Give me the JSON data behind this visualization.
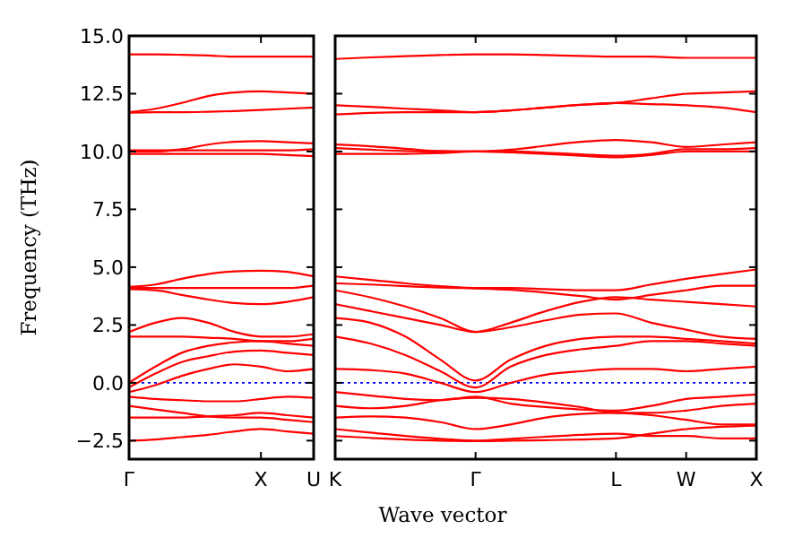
{
  "chart_data": [
    {
      "type": "line",
      "ylabel": "Frequency (THz)",
      "categories": [
        "Γ",
        null,
        null,
        null,
        null,
        "X",
        null,
        "U"
      ],
      "ylim": [
        -3.3,
        15
      ],
      "yticks": [
        {
          "value": -2.5,
          "label": "−2.5"
        },
        {
          "value": 0,
          "label": "0.0"
        },
        {
          "value": 2.5,
          "label": "2.5"
        },
        {
          "value": 5,
          "label": "5.0"
        },
        {
          "value": 7.5,
          "label": "7.5"
        },
        {
          "value": 10,
          "label": "10.0"
        },
        {
          "value": 12.5,
          "label": "12.5"
        },
        {
          "value": 15,
          "label": "15.0"
        }
      ],
      "grid": false,
      "ref_lines": [
        {
          "axis": "y",
          "value": 0,
          "color": "#0000ff",
          "line_style": "dotted"
        }
      ],
      "series": [
        {
          "color": "#ff0000",
          "values": [
            14.2,
            14.2,
            14.18,
            14.15,
            14.1,
            14.1,
            14.1,
            14.1
          ]
        },
        {
          "color": "#ff0000",
          "values": [
            11.7,
            11.85,
            12.1,
            12.4,
            12.55,
            12.6,
            12.55,
            12.5
          ]
        },
        {
          "color": "#ff0000",
          "values": [
            11.68,
            11.7,
            11.7,
            11.72,
            11.75,
            11.8,
            11.85,
            11.9
          ]
        },
        {
          "color": "#ff0000",
          "values": [
            10.0,
            10.0,
            10.1,
            10.3,
            10.42,
            10.45,
            10.4,
            10.35
          ]
        },
        {
          "color": "#ff0000",
          "values": [
            10.05,
            10.05,
            10.05,
            10.05,
            10.05,
            10.05,
            10.05,
            10.1
          ]
        },
        {
          "color": "#ff0000",
          "values": [
            9.9,
            9.9,
            9.9,
            9.9,
            9.9,
            9.9,
            9.85,
            9.8
          ]
        },
        {
          "color": "#ff0000",
          "values": [
            4.15,
            4.25,
            4.5,
            4.7,
            4.82,
            4.85,
            4.8,
            4.6
          ]
        },
        {
          "color": "#ff0000",
          "values": [
            4.1,
            4.1,
            4.1,
            4.1,
            4.1,
            4.1,
            4.1,
            4.2
          ]
        },
        {
          "color": "#ff0000",
          "values": [
            4.05,
            4.0,
            3.8,
            3.6,
            3.45,
            3.4,
            3.5,
            3.7
          ]
        },
        {
          "color": "#ff0000",
          "values": [
            2.2,
            2.6,
            2.8,
            2.6,
            2.2,
            2.0,
            2.0,
            2.1
          ]
        },
        {
          "color": "#ff0000",
          "values": [
            2.0,
            2.0,
            2.0,
            1.95,
            1.9,
            1.8,
            1.8,
            1.9
          ]
        },
        {
          "color": "#ff0000",
          "values": [
            0.0,
            0.7,
            1.3,
            1.6,
            1.75,
            1.8,
            1.7,
            1.6
          ]
        },
        {
          "color": "#ff0000",
          "values": [
            -0.2,
            0.4,
            0.9,
            1.15,
            1.35,
            1.4,
            1.3,
            1.2
          ]
        },
        {
          "color": "#ff0000",
          "values": [
            -0.4,
            -0.1,
            0.3,
            0.6,
            0.8,
            0.7,
            0.5,
            0.6
          ]
        },
        {
          "color": "#ff0000",
          "values": [
            -0.6,
            -0.7,
            -0.75,
            -0.8,
            -0.8,
            -0.7,
            -0.6,
            -0.65
          ]
        },
        {
          "color": "#ff0000",
          "values": [
            -1.0,
            -1.15,
            -1.3,
            -1.45,
            -1.5,
            -1.5,
            -1.6,
            -1.7
          ]
        },
        {
          "color": "#ff0000",
          "values": [
            -1.5,
            -1.5,
            -1.5,
            -1.45,
            -1.4,
            -1.3,
            -1.4,
            -1.5
          ]
        },
        {
          "color": "#ff0000",
          "values": [
            -2.5,
            -2.45,
            -2.35,
            -2.25,
            -2.1,
            -2.0,
            -2.1,
            -2.2
          ]
        }
      ]
    },
    {
      "type": "line",
      "xlabel": "Wave vector",
      "categories": [
        "K",
        null,
        null,
        null,
        "Γ",
        null,
        null,
        null,
        "L",
        null,
        "W",
        null,
        "X"
      ],
      "ylim": [
        -3.3,
        15
      ],
      "yticks": [
        {
          "value": -2.5,
          "label": null
        },
        {
          "value": 0,
          "label": null
        },
        {
          "value": 2.5,
          "label": null
        },
        {
          "value": 5,
          "label": null
        },
        {
          "value": 7.5,
          "label": null
        },
        {
          "value": 10,
          "label": null
        },
        {
          "value": 12.5,
          "label": null
        },
        {
          "value": 15,
          "label": null
        }
      ],
      "tick_labels": "x",
      "grid": false,
      "ref_lines": [
        {
          "axis": "y",
          "value": 0,
          "color": "#0000ff",
          "line_style": "dotted"
        }
      ],
      "series": [
        {
          "color": "#ff0000",
          "values": [
            14.0,
            14.07,
            14.12,
            14.17,
            14.2,
            14.2,
            14.17,
            14.13,
            14.1,
            14.1,
            14.05,
            14.05,
            14.05
          ]
        },
        {
          "color": "#ff0000",
          "values": [
            12.0,
            11.93,
            11.85,
            11.78,
            11.7,
            11.78,
            11.9,
            12.02,
            12.1,
            12.3,
            12.5,
            12.55,
            12.6
          ]
        },
        {
          "color": "#ff0000",
          "values": [
            11.6,
            11.67,
            11.7,
            11.7,
            11.7,
            11.78,
            11.9,
            12.02,
            12.1,
            12.05,
            12.0,
            11.9,
            11.7
          ]
        },
        {
          "color": "#ff0000",
          "values": [
            10.3,
            10.23,
            10.12,
            10.02,
            10.0,
            10.08,
            10.25,
            10.42,
            10.5,
            10.4,
            10.2,
            10.3,
            10.4
          ]
        },
        {
          "color": "#ff0000",
          "values": [
            10.15,
            10.08,
            10.02,
            10.0,
            10.0,
            10.0,
            9.95,
            9.88,
            9.82,
            9.9,
            10.1,
            10.1,
            10.15
          ]
        },
        {
          "color": "#ff0000",
          "values": [
            9.9,
            9.9,
            9.9,
            9.93,
            10.0,
            9.96,
            9.9,
            9.82,
            9.75,
            9.85,
            10.0,
            10.0,
            10.0
          ]
        },
        {
          "color": "#ff0000",
          "values": [
            4.6,
            4.45,
            4.3,
            4.18,
            4.1,
            4.1,
            4.05,
            4.0,
            4.0,
            4.25,
            4.5,
            4.7,
            4.9
          ]
        },
        {
          "color": "#ff0000",
          "values": [
            4.3,
            4.25,
            4.18,
            4.12,
            4.08,
            4.02,
            3.9,
            3.75,
            3.6,
            3.8,
            4.0,
            4.2,
            4.2
          ]
        },
        {
          "color": "#ff0000",
          "values": [
            4.0,
            3.7,
            3.3,
            2.8,
            2.2,
            2.6,
            3.1,
            3.5,
            3.7,
            3.6,
            3.5,
            3.4,
            3.3
          ]
        },
        {
          "color": "#ff0000",
          "values": [
            3.4,
            3.1,
            2.8,
            2.5,
            2.2,
            2.4,
            2.7,
            2.95,
            3.0,
            2.6,
            2.3,
            2.0,
            1.9
          ]
        },
        {
          "color": "#ff0000",
          "values": [
            2.8,
            2.6,
            2.0,
            1.0,
            0.1,
            1.0,
            1.6,
            1.9,
            2.0,
            2.0,
            1.9,
            1.8,
            1.7
          ]
        },
        {
          "color": "#ff0000",
          "values": [
            2.0,
            1.7,
            1.2,
            0.5,
            -0.2,
            0.7,
            1.2,
            1.45,
            1.6,
            1.8,
            1.8,
            1.7,
            1.6
          ]
        },
        {
          "color": "#ff0000",
          "values": [
            0.6,
            0.55,
            0.4,
            0.0,
            -0.4,
            0.0,
            0.35,
            0.5,
            0.6,
            0.6,
            0.5,
            0.6,
            0.7
          ]
        },
        {
          "color": "#ff0000",
          "values": [
            -0.4,
            -0.55,
            -0.7,
            -0.75,
            -0.6,
            -0.9,
            -1.05,
            -1.15,
            -1.2,
            -1.0,
            -0.7,
            -0.6,
            -0.5
          ]
        },
        {
          "color": "#ff0000",
          "values": [
            -1.0,
            -1.1,
            -1.0,
            -0.75,
            -0.65,
            -0.7,
            -0.85,
            -1.05,
            -1.3,
            -1.3,
            -1.2,
            -1.0,
            -0.9
          ]
        },
        {
          "color": "#ff0000",
          "values": [
            -1.5,
            -1.45,
            -1.5,
            -1.7,
            -2.0,
            -1.8,
            -1.5,
            -1.35,
            -1.3,
            -1.4,
            -1.6,
            -1.8,
            -1.8
          ]
        },
        {
          "color": "#ff0000",
          "values": [
            -2.0,
            -2.15,
            -2.3,
            -2.42,
            -2.5,
            -2.42,
            -2.33,
            -2.25,
            -2.2,
            -2.3,
            -2.3,
            -2.4,
            -2.4
          ]
        },
        {
          "color": "#ff0000",
          "values": [
            -2.3,
            -2.38,
            -2.45,
            -2.5,
            -2.52,
            -2.5,
            -2.48,
            -2.45,
            -2.4,
            -2.2,
            -2.0,
            -1.9,
            -1.85
          ]
        }
      ]
    }
  ]
}
